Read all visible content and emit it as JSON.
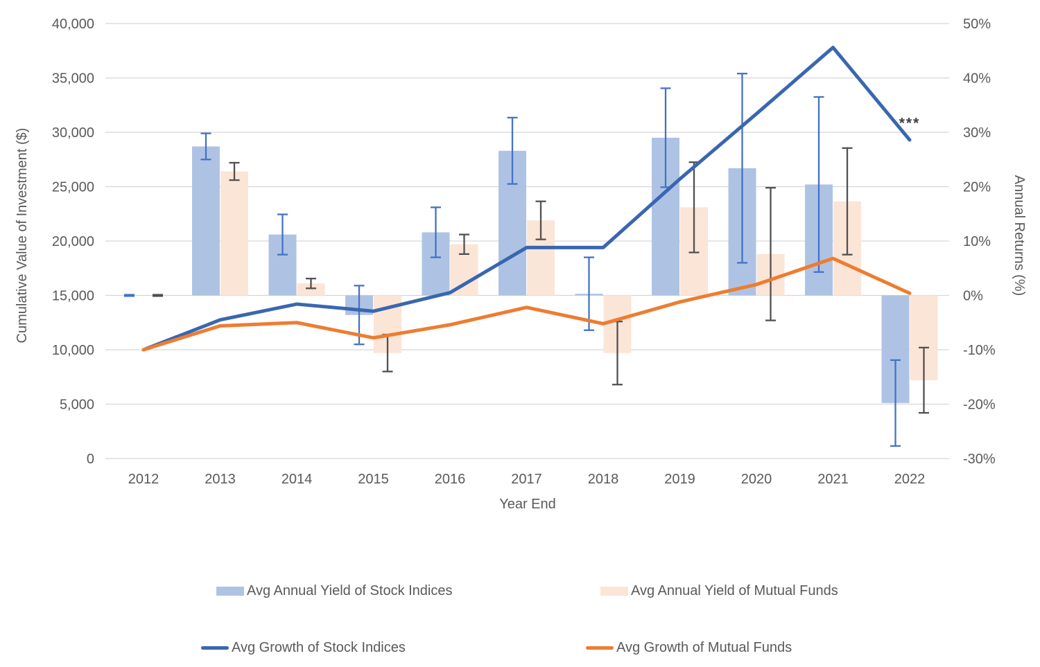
{
  "chart_data": {
    "type": "combo_bar_line",
    "categories": [
      "2012",
      "2013",
      "2014",
      "2015",
      "2016",
      "2017",
      "2018",
      "2019",
      "2020",
      "2021",
      "2022"
    ],
    "x_axis_title": "Year End",
    "left_axis": {
      "title": "Cumulative Value of Investment ($)",
      "tick_labels": [
        "0",
        "5,000",
        "10,000",
        "15,000",
        "20,000",
        "25,000",
        "30,000",
        "35,000",
        "40,000"
      ],
      "min": 0,
      "max": 40000,
      "step": 5000
    },
    "right_axis": {
      "title": "Annual Returns (%)",
      "tick_labels": [
        "-30%",
        "-20%",
        "-10%",
        "0%",
        "10%",
        "20%",
        "30%",
        "40%",
        "50%"
      ],
      "min": -30,
      "max": 50,
      "step": 10
    },
    "axis_note": "bars plotted on right axis (0% aligns with 15,000 on left axis); lines plotted on left axis",
    "bar_series": [
      {
        "name": "Avg Annual Yield of Stock Indices",
        "axis": "right",
        "unit": "%",
        "color": "#aec3e4",
        "error_color": "#4472c4",
        "values_pct": [
          0,
          27.4,
          11.2,
          -3.6,
          11.6,
          26.6,
          0.3,
          29.0,
          23.4,
          20.4,
          -19.8
        ],
        "error_pct": [
          0.12,
          2.4,
          3.7,
          5.4,
          4.6,
          6.1,
          6.7,
          9.1,
          17.4,
          16.1,
          7.9
        ]
      },
      {
        "name": "Avg Annual Yield of Mutual Funds",
        "axis": "right",
        "unit": "%",
        "color": "#fbe5d7",
        "error_color": "#505050",
        "values_pct": [
          0,
          22.8,
          2.2,
          -10.6,
          9.4,
          13.8,
          -10.6,
          16.2,
          7.6,
          17.3,
          -15.6
        ],
        "error_pct": [
          0.12,
          1.6,
          0.9,
          3.4,
          1.8,
          3.5,
          5.8,
          8.3,
          12.2,
          9.8,
          6.0
        ]
      }
    ],
    "line_series": [
      {
        "name": "Avg Growth of Stock Indices",
        "axis": "left",
        "unit": "$",
        "color": "#3a66b0",
        "values": [
          10000,
          12750,
          14200,
          13550,
          15250,
          19400,
          19400,
          25700,
          31700,
          37800,
          29300
        ]
      },
      {
        "name": "Avg Growth of Mutual Funds",
        "axis": "left",
        "unit": "$",
        "color": "#ed7d31",
        "values": [
          10000,
          12200,
          12500,
          11100,
          12300,
          13900,
          12400,
          14400,
          16000,
          18400,
          15200
        ]
      }
    ],
    "annotation": {
      "text": "***",
      "category_index": 10,
      "value_left_axis": 30400
    },
    "gridlines": "horizontal",
    "legend_position": "bottom"
  },
  "style": {
    "gridline_color": "#d6d6d6",
    "label_color": "#595959",
    "annotation_color": "#404040"
  }
}
